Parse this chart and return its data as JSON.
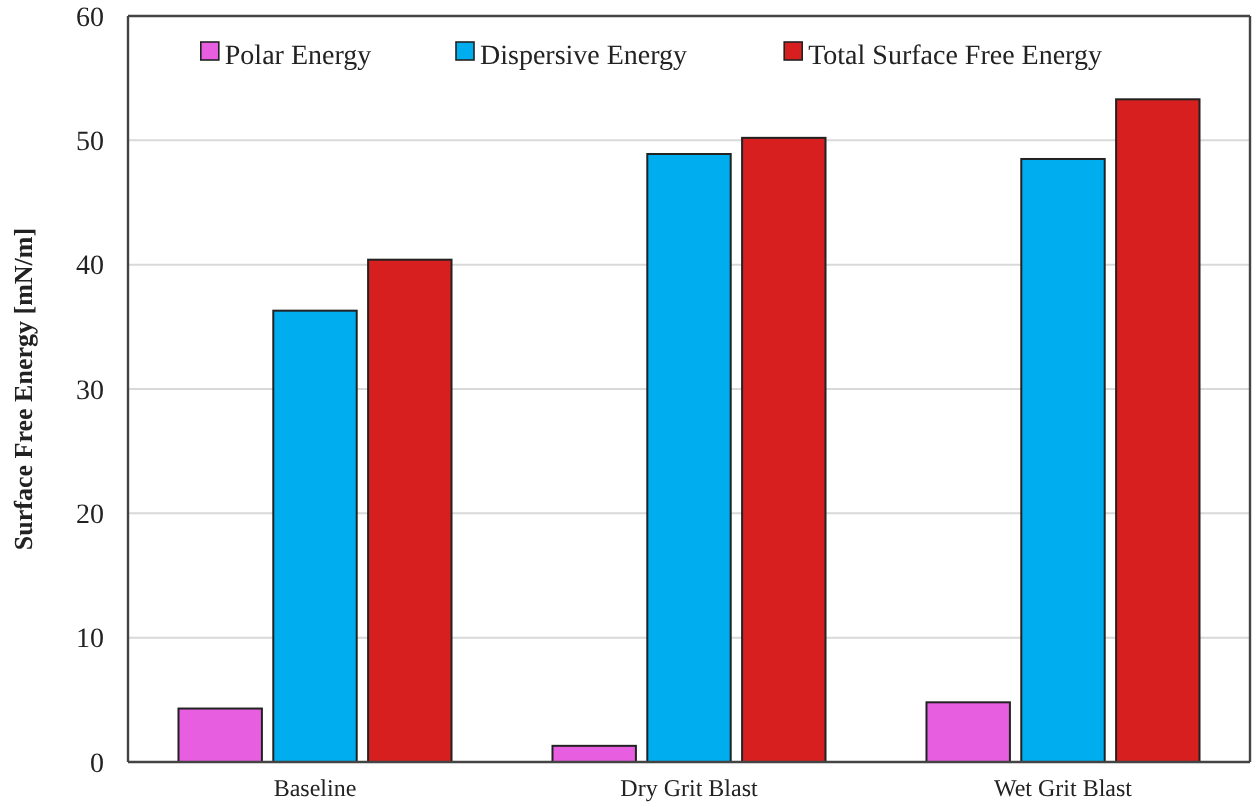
{
  "chart_data": {
    "type": "bar",
    "ylabel": "Surface Free Energy [mN/m]",
    "categories": [
      "Baseline",
      "Dry Grit Blast",
      "Wet Grit Blast"
    ],
    "series": [
      {
        "name": "Polar Energy",
        "color": "#e85ee0",
        "values": [
          4.3,
          1.3,
          4.8
        ]
      },
      {
        "name": "Dispersive Energy",
        "color": "#00aeef",
        "values": [
          36.3,
          48.9,
          48.5
        ]
      },
      {
        "name": "Total Surface Free Energy",
        "color": "#d71f1f",
        "values": [
          40.4,
          50.2,
          53.3
        ]
      }
    ],
    "ylim": [
      0,
      60
    ],
    "yticks": [
      0,
      10,
      20,
      30,
      40,
      50,
      60
    ],
    "grid": "y",
    "legend": "top"
  }
}
